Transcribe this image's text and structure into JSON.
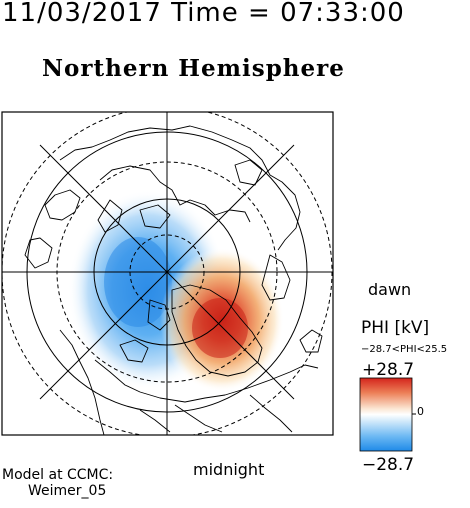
{
  "header": {
    "timestamp": "11/03/2017 Time = 07:33:00",
    "title": "Northern Hemisphere"
  },
  "map": {
    "dawn_label": "dawn",
    "midnight_label": "midnight",
    "colors": {
      "negative": "#3d9ff0",
      "positive": "#d72a1c",
      "neutral": "#ffffff",
      "land_outline": "#000000"
    }
  },
  "colorbar": {
    "title": "PHI [kV]",
    "range_text": "−28.7<PHI<25.5",
    "max_label": "+28.7",
    "min_label": "−28.7",
    "zero_label": "0"
  },
  "footer": {
    "model_line1": "Model at CCMC:",
    "model_line2": "Weimer_05"
  }
}
